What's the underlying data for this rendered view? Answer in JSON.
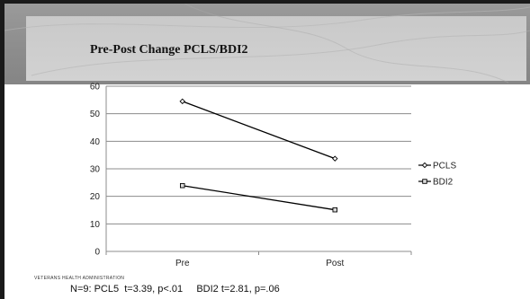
{
  "slide": {
    "title": "Pre-Post Change PCLS/BDI2",
    "footer_org": "VETERANS HEALTH ADMINISTRATION",
    "footer_note": "N=9: PCL5  t=3.39, p<.01     BDI2 t=2.81, p=.06"
  },
  "colors": {
    "line": "#000000",
    "grid": "#8c8c8c",
    "header_dark": "#8d8d8d",
    "header_light": "#cccccc"
  },
  "chart_data": {
    "type": "line",
    "categories": [
      "Pre",
      "Post"
    ],
    "series": [
      {
        "name": "PCLS",
        "marker": "diamond",
        "values": [
          54.5,
          33.7
        ]
      },
      {
        "name": "BDI2",
        "marker": "square",
        "values": [
          23.9,
          15.1
        ]
      }
    ],
    "ylim": [
      0,
      60
    ],
    "yticks": [
      "0",
      "10",
      "20",
      "30",
      "40",
      "50",
      "60"
    ],
    "grid": true,
    "legend": "right"
  }
}
